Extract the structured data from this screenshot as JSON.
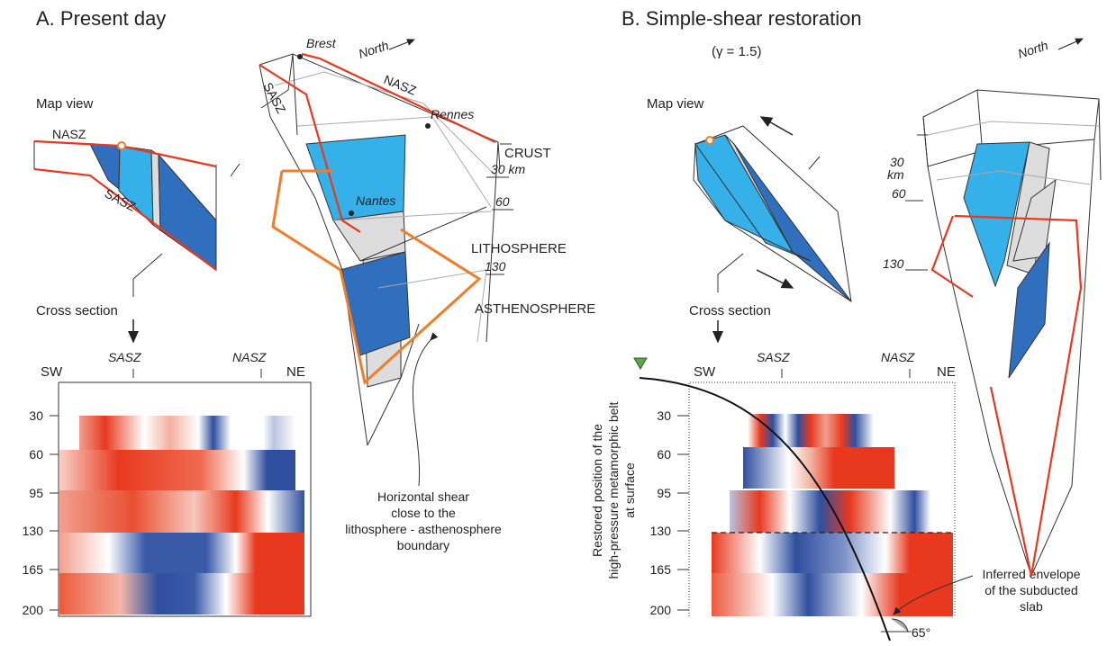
{
  "panel_a": {
    "title": "A. Present day",
    "map_view": {
      "label": "Map view",
      "nasz": "NASZ",
      "sasz": "SASZ"
    },
    "cross_section_label": "Cross section",
    "section": {
      "sw": "SW",
      "sasz": "SASZ",
      "nasz": "NASZ",
      "ne": "NE",
      "depths": [
        "30",
        "60",
        "95",
        "130",
        "165",
        "200"
      ]
    },
    "block": {
      "brest": "Brest",
      "north": "North",
      "nasz": "NASZ",
      "sasz": "SASZ",
      "rennes": "Rennes",
      "crust": "CRUST",
      "depth_30": "30 km",
      "depth_60": "60",
      "nantes": "Nantes",
      "lithosphere": "LITHOSPHERE",
      "depth_130": "130",
      "asthenosphere": "ASTHENOSPHERE"
    },
    "annotation": [
      "Horizontal shear",
      "close to the",
      "lithosphere - asthenosphere",
      "boundary"
    ]
  },
  "panel_b": {
    "title": "B. Simple-shear restoration",
    "subtitle": "(γ = 1.5)",
    "map_view": {
      "label": "Map view"
    },
    "cross_section_label": "Cross section",
    "section": {
      "sw": "SW",
      "sasz": "SASZ",
      "nasz": "NASZ",
      "ne": "NE",
      "depths": [
        "30",
        "60",
        "95",
        "130",
        "165",
        "200"
      ]
    },
    "block": {
      "north": "North",
      "depth_30": "30",
      "km": "km",
      "depth_60": "60",
      "depth_130": "130"
    },
    "vertical_label": [
      "Restored position of the",
      "high-pressure metamorphic belt",
      "at surface"
    ],
    "annotation": [
      "Inferred envelope",
      "of the subducted",
      "slab"
    ],
    "angle": "65°"
  }
}
